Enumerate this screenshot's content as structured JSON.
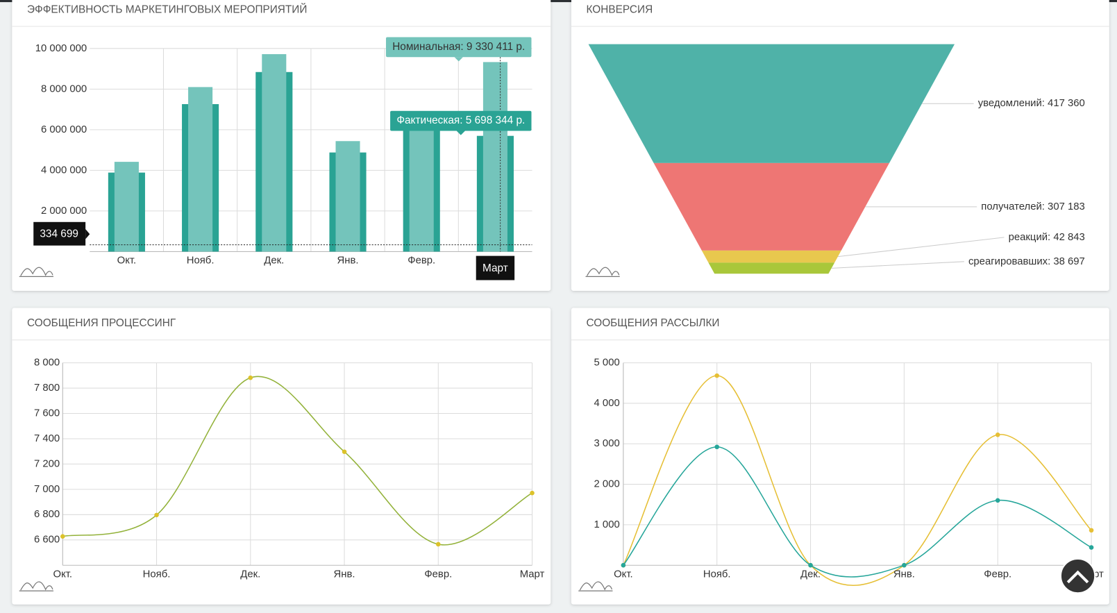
{
  "chart_data": [
    {
      "type": "bar",
      "title": "ЭФФЕКТИВНОСТЬ МАРКЕТИНГОВЫХ МЕРОПРИЯТИЙ",
      "categories": [
        "Окт.",
        "Нояб.",
        "Дек.",
        "Янв.",
        "Февр.",
        "Март"
      ],
      "series": [
        {
          "color": "#2aa394",
          "values": [
            3890000,
            7260000,
            8840000,
            4880000,
            6050000,
            5698344
          ],
          "value_labels": [
            null,
            null,
            null,
            null,
            null,
            "Фактическая: 5 698 344 р."
          ]
        },
        {
          "color": "#74c4bb",
          "values": [
            4420000,
            8100000,
            9720000,
            5440000,
            6100000,
            9330411
          ],
          "value_labels": [
            null,
            null,
            null,
            null,
            null,
            "Номинальная: 9 330 411 р."
          ]
        }
      ],
      "threshold": {
        "value": 334699,
        "label": "334 699"
      },
      "ylim": [
        0,
        10000000
      ],
      "yticks": [
        {
          "value": 2000000,
          "label": "2 000 000"
        },
        {
          "value": 4000000,
          "label": "4 000 000"
        },
        {
          "value": 6000000,
          "label": "6 000 000"
        },
        {
          "value": 8000000,
          "label": "8 000 000"
        },
        {
          "value": 10000000,
          "label": "10 000 000"
        }
      ],
      "grid": true
    },
    {
      "type": "funnel",
      "title": "КОНВЕРСИЯ",
      "categories": [
        "уведомлений",
        "получателей",
        "реакций",
        "среагировавших"
      ],
      "values": [
        417360,
        307183,
        42843,
        38697
      ],
      "value_labels": [
        "уведомлений: 417 360",
        "получателей: 307 183",
        "реакций: 42 843",
        "среагировавших: 38 697"
      ],
      "colors": [
        "#4fb2a8",
        "#ee7674",
        "#e8c84e",
        "#a9c73a"
      ]
    },
    {
      "type": "line",
      "title": "СООБЩЕНИЯ ПРОЦЕССИНГ",
      "categories": [
        "Окт.",
        "Нояб.",
        "Дек.",
        "Янв.",
        "Февр.",
        "Март"
      ],
      "series": [
        {
          "color": "#93b23a",
          "marker_color": "#dcc22a",
          "values": [
            6628,
            6797,
            7882,
            7297,
            6566,
            6971
          ]
        }
      ],
      "ylim": [
        6400,
        8000
      ],
      "yticks": [
        {
          "value": 6600,
          "label": "6 600"
        },
        {
          "value": 6800,
          "label": "6 800"
        },
        {
          "value": 7000,
          "label": "7 000"
        },
        {
          "value": 7200,
          "label": "7 200"
        },
        {
          "value": 7400,
          "label": "7 400"
        },
        {
          "value": 7600,
          "label": "7 600"
        },
        {
          "value": 7800,
          "label": "7 800"
        },
        {
          "value": 8000,
          "label": "8 000"
        }
      ],
      "grid": true
    },
    {
      "type": "line",
      "title": "СООБЩЕНИЯ РАССЫЛКИ",
      "categories": [
        "Окт.",
        "Нояб.",
        "Дек.",
        "Янв.",
        "Февр.",
        "Март"
      ],
      "series": [
        {
          "color": "#e6bf35",
          "marker_color": "#e6bf35",
          "values": [
            0,
            4683,
            0,
            0,
            3222,
            863
          ]
        },
        {
          "color": "#26a69a",
          "marker_color": "#26a69a",
          "values": [
            0,
            2923,
            0,
            0,
            1602,
            440
          ]
        }
      ],
      "ylim": [
        0,
        5000
      ],
      "yticks": [
        {
          "value": 1000,
          "label": "1 000"
        },
        {
          "value": 2000,
          "label": "2 000"
        },
        {
          "value": 3000,
          "label": "3 000"
        },
        {
          "value": 4000,
          "label": "4 000"
        },
        {
          "value": 5000,
          "label": "5 000"
        }
      ],
      "grid": true
    }
  ]
}
